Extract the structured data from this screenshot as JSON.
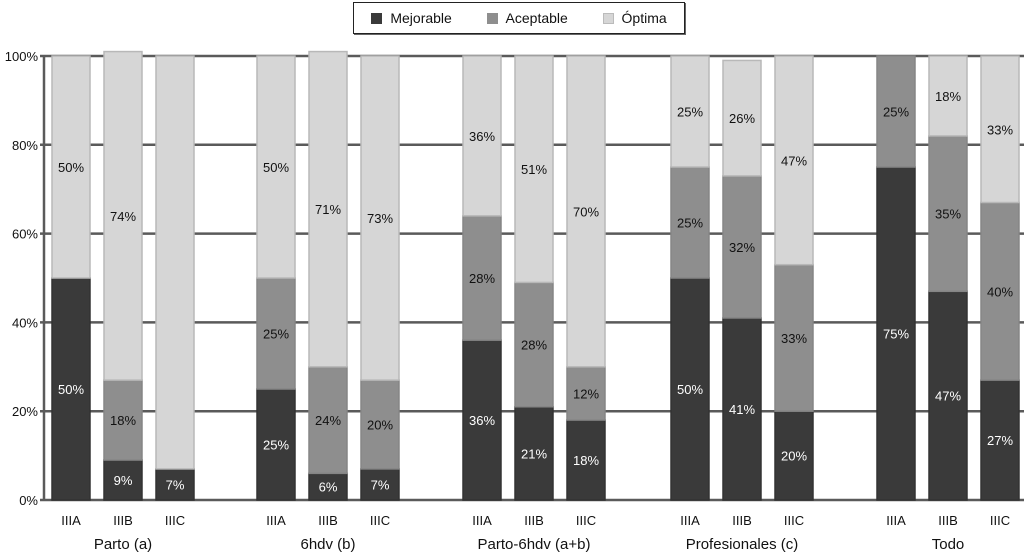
{
  "chart_data": {
    "type": "bar",
    "stacked": true,
    "title": "",
    "xlabel": "",
    "ylabel": "",
    "ylim": [
      0,
      100
    ],
    "y_ticks": [
      "0%",
      "20%",
      "40%",
      "60%",
      "80%",
      "100%"
    ],
    "grid": true,
    "legend_position": "top-center",
    "groups": [
      "Parto (a)",
      "6hdv (b)",
      "Parto-6hdv (a+b)",
      "Profesionales (c)",
      "Todo"
    ],
    "categories": [
      "IIIA",
      "IIIB",
      "IIIC"
    ],
    "series": [
      {
        "name": "Mejorable",
        "color": "#3a3a3a",
        "values": [
          [
            50,
            9,
            7
          ],
          [
            25,
            6,
            7
          ],
          [
            36,
            21,
            18
          ],
          [
            50,
            41,
            20
          ],
          [
            75,
            47,
            27
          ]
        ],
        "labels": [
          [
            "50%",
            "9%",
            "7%"
          ],
          [
            "25%",
            "6%",
            "7%"
          ],
          [
            "36%",
            "21%",
            "18%"
          ],
          [
            "50%",
            "41%",
            "20%"
          ],
          [
            "75%",
            "47%",
            "27%"
          ]
        ]
      },
      {
        "name": "Aceptable",
        "color": "#8e8e8e",
        "values": [
          [
            0,
            18,
            0
          ],
          [
            25,
            24,
            20
          ],
          [
            28,
            28,
            12
          ],
          [
            25,
            32,
            33
          ],
          [
            25,
            35,
            40
          ]
        ],
        "labels": [
          [
            "",
            "18%",
            ""
          ],
          [
            "25%",
            "24%",
            "20%"
          ],
          [
            "28%",
            "28%",
            "12%"
          ],
          [
            "25%",
            "32%",
            "33%"
          ],
          [
            "25%",
            "35%",
            "40%"
          ]
        ]
      },
      {
        "name": "Óptima",
        "color": "#d6d6d6",
        "values": [
          [
            50,
            74,
            93
          ],
          [
            50,
            71,
            73
          ],
          [
            36,
            51,
            70
          ],
          [
            25,
            26,
            47
          ],
          [
            0,
            18,
            33
          ]
        ],
        "labels": [
          [
            "50%",
            "74%",
            ""
          ],
          [
            "50%",
            "71%",
            "73%"
          ],
          [
            "36%",
            "51%",
            "70%"
          ],
          [
            "25%",
            "26%",
            "47%"
          ],
          [
            "",
            "18%",
            "33%"
          ]
        ]
      }
    ]
  },
  "legend": {
    "items": [
      {
        "label": "Mejorable",
        "color": "#3a3a3a"
      },
      {
        "label": "Aceptable",
        "color": "#8e8e8e"
      },
      {
        "label": "Óptima",
        "color": "#d6d6d6"
      }
    ]
  }
}
